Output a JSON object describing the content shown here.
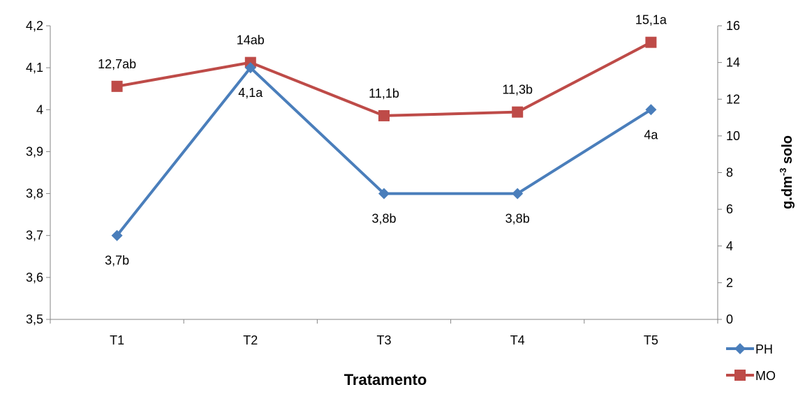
{
  "chart_data": {
    "type": "line",
    "categories": [
      "T1",
      "T2",
      "T3",
      "T4",
      "T5"
    ],
    "xlabel": "Tratamento",
    "ylabel": "",
    "y2label": "g.dm-3 solo",
    "y2label_main": "g.dm",
    "y2label_sup": "-3",
    "y2label_rest": " solo",
    "ylim": [
      3.5,
      4.2
    ],
    "yticks": [
      "3,5",
      "3,6",
      "3,7",
      "3,8",
      "3,9",
      "4",
      "4,1",
      "4,2"
    ],
    "y2lim": [
      0,
      16
    ],
    "y2ticks": [
      "0",
      "2",
      "4",
      "6",
      "8",
      "10",
      "12",
      "14",
      "16"
    ],
    "legend_position": "bottom-right",
    "series": [
      {
        "name": "PH",
        "axis": "left",
        "color": "#4a7ebb",
        "marker": "diamond",
        "values": [
          3.7,
          4.1,
          3.8,
          3.8,
          4.0
        ],
        "labels": [
          "3,7b",
          "4,1a",
          "3,8b",
          "3,8b",
          "4a"
        ]
      },
      {
        "name": "MO",
        "axis": "right",
        "color": "#be4b48",
        "marker": "square",
        "values": [
          12.7,
          14,
          11.1,
          11.3,
          15.1
        ],
        "labels": [
          "12,7ab",
          "14ab",
          "11,1b",
          "11,3b",
          "15,1a"
        ]
      }
    ]
  }
}
